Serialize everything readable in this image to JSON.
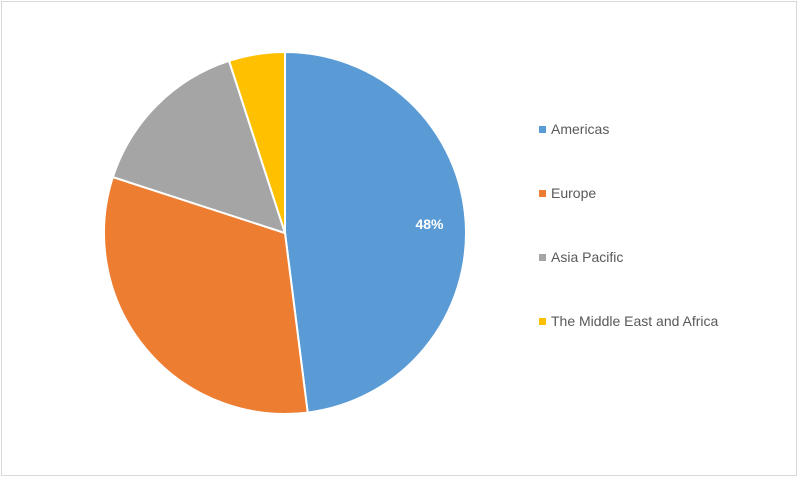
{
  "chart_data": {
    "type": "pie",
    "title": "",
    "categories": [
      "Americas",
      "Europe",
      "Asia Pacific",
      "The Middle East and Africa"
    ],
    "values": [
      48,
      32,
      15,
      5
    ],
    "data_labels": [
      "48%",
      "",
      "",
      ""
    ],
    "colors": [
      "#5b9bd5",
      "#ed7d31",
      "#a5a5a5",
      "#ffc000"
    ],
    "start_angle_deg": 0,
    "direction": "clockwise",
    "legend": "right"
  }
}
